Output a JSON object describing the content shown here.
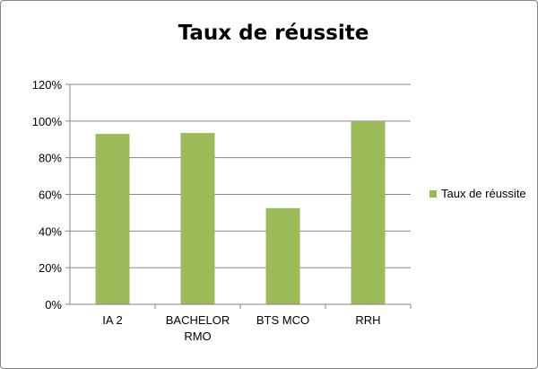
{
  "chart_data": {
    "type": "bar",
    "title": "Taux de réussite",
    "categories": [
      "IA 2",
      "BACHELOR RMO",
      "BTS MCO",
      "RRH"
    ],
    "category_lines": [
      [
        "IA 2"
      ],
      [
        "BACHELOR",
        "RMO"
      ],
      [
        "BTS MCO"
      ],
      [
        "RRH"
      ]
    ],
    "series": [
      {
        "name": "Taux de réussite",
        "values": [
          0.93,
          0.935,
          0.525,
          1.0
        ]
      }
    ],
    "ylim": [
      0,
      1.2
    ],
    "yticks": [
      0,
      0.2,
      0.4,
      0.6,
      0.8,
      1.0,
      1.2
    ],
    "ytick_labels": [
      "0%",
      "20%",
      "40%",
      "60%",
      "80%",
      "100%",
      "120%"
    ],
    "xlabel": "",
    "ylabel": "",
    "grid": true,
    "legend_position": "right",
    "bar_color": "#9bbb59",
    "grid_color": "#868686"
  }
}
